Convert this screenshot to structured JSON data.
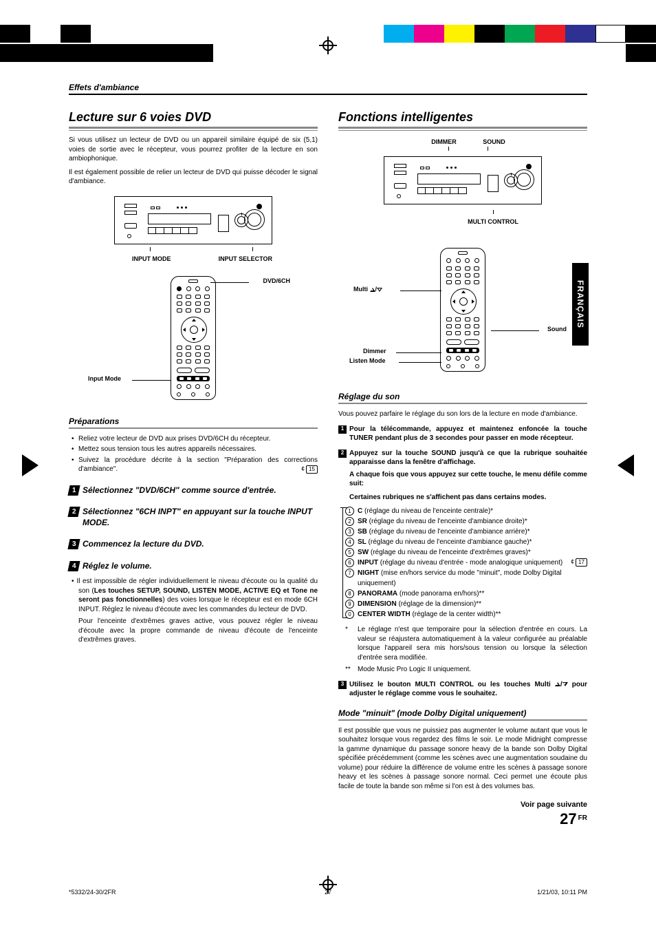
{
  "colorbar": [
    "#00aeef",
    "#ec008c",
    "#fff200",
    "#000000",
    "#00a651",
    "#ed1c24",
    "#2e3192",
    "#ffffff",
    "#000000"
  ],
  "lang_tab": "FRANÇAIS",
  "breadcrumb": "Effets d'ambiance",
  "left": {
    "title": "Lecture sur 6 voies DVD",
    "intro1": "Si vous utilisez un lecteur de DVD ou un appareil similaire équipé de six (5,1) voies de sortie avec le récepteur, vous pourrez profiter de la lecture en son ambiophonique.",
    "intro2": "Il est également possible de relier un lecteur de DVD qui puisse décoder le signal d'ambiance.",
    "diagram": {
      "under_left": "INPUT MODE",
      "under_right": "INPUT SELECTOR",
      "remote_top": "DVD/6CH",
      "remote_left": "Input Mode"
    },
    "prep_title": "Préparations",
    "prep_items": [
      "Reliez votre lecteur de DVD aux prises DVD/6CH du récepteur.",
      "Mettez sous tension tous les autres appareils nécessaires."
    ],
    "prep_item3_a": "Suivez la procédure décrite à la section \"Préparation des corrections d'ambiance\".",
    "prep_item3_ref": "15",
    "steps": [
      "Sélectionnez \"DVD/6CH\" comme source d'entrée.",
      "Sélectionnez \"6CH INPT\" en appuyant sur la touche INPUT MODE.",
      "Commencez la lecture du DVD.",
      "Réglez le volume."
    ],
    "note_lead": "Il est impossible de régler individuellement le niveau d'écoute ou la qualité du son (",
    "note_bold": "Les touches SETUP, SOUND, LISTEN MODE, ACTIVE EQ et Tone ne seront pas fonctionnelles",
    "note_tail": ") des voies lorsque le récepteur est en mode 6CH INPUT. Réglez le niveau d'écoute avec les commandes du lecteur de DVD.",
    "note_p2": "Pour l'enceinte d'extrêmes graves active, vous pouvez régler le niveau d'écoute avec la propre commande de niveau d'écoute de l'enceinte d'extrêmes graves."
  },
  "right": {
    "title": "Fonctions intelligentes",
    "diagram": {
      "top_left": "DIMMER",
      "top_right": "SOUND",
      "under": "MULTI CONTROL",
      "c_multi": "Multi",
      "c_sound": "Sound",
      "c_dimmer": "Dimmer",
      "c_listen": "Listen Mode"
    },
    "reglage_title": "Réglage du son",
    "reglage_intro": "Vous pouvez parfaire le réglage du son lors de la lecture en mode d'ambiance.",
    "step1": "Pour la télécommande, appuyez et maintenez enfoncée la touche TUNER pendant plus de 3 secondes pour passer en mode récepteur.",
    "step2": "Appuyez sur la touche SOUND jusqu'à ce que la rubrique souhaitée apparaisse dans la fenêtre d'affichage.",
    "step2_sub1": "A chaque fois que vous appuyez sur cette touche, le menu défile comme suit:",
    "step2_sub2": "Certaines rubriques ne s'affichent pas dans certains modes.",
    "menu": [
      {
        "b": "C",
        "t": " (réglage du niveau de l'enceinte centrale)*"
      },
      {
        "b": "SR",
        "t": " (réglage du niveau de l'enceinte d'ambiance droite)*"
      },
      {
        "b": "SB",
        "t": " (réglage du niveau de l'enceinte d'ambiance arrière)*"
      },
      {
        "b": "SL",
        "t": " (réglage du niveau de l'enceinte d'ambiance gauche)*"
      },
      {
        "b": "SW",
        "t": " (réglage du niveau de l'enceinte d'extrêmes graves)*"
      },
      {
        "b": "INPUT",
        "t": " (réglage du niveau d'entrée - mode analogique uniquement)",
        "ref": "17"
      },
      {
        "b": "NIGHT",
        "t": " (mise en/hors service du mode \"minuit\", mode Dolby Digital uniquement)"
      },
      {
        "b": "PANORAMA",
        "t": " (mode panorama en/hors)**"
      },
      {
        "b": "DIMENSION",
        "t": " (réglage de la dimension)**"
      },
      {
        "b": "CENTER WIDTH",
        "t": " (réglage de la center width)**"
      }
    ],
    "star1": "Le réglage n'est que temporaire pour la sélection d'entrée en cours. La valeur se réajustera automatiquement à la valeur configurée au préalable lorsque l'appareil sera mis hors/sous tension ou lorsque la sélection d'entrée sera modifiée.",
    "star2": "Mode Music Pro Logic II uniquement.",
    "step3_a": "Utilisez le bouton MULTI CONTROL ou les touches Multi ",
    "step3_b": " pour adjuster le réglage comme vous le souhaitez.",
    "mode_title": "Mode \"minuit\" (mode Dolby Digital uniquement)",
    "mode_body": "Il est possible que vous ne puissiez pas augmenter le volume autant que vous le souhaitez lorsque vous regardez des films le soir. Le mode Midnight compresse la gamme dynamique du passage sonore heavy de la bande son Dolby Digital spécifiée précédemment  (comme les scènes avec une augmentation soudaine du volume) pour réduire la différence de volume entre les scènes à passage sonore heavy et les scènes à passage sonore normal. Ceci permet une écoute plus facile de toute la bande son même si l'on est à des volumes bas.",
    "see_next": "Voir page suivante",
    "pagenum": "27",
    "pagelang": "FR"
  },
  "footer": {
    "left": "*5332/24-30/2FR",
    "mid": "27",
    "right": "1/21/03, 10:11 PM"
  }
}
